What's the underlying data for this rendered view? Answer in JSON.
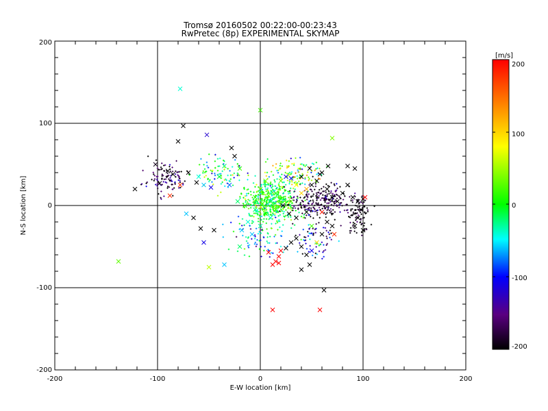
{
  "chart_data": {
    "type": "scatter",
    "title": "Tromsø 20160502 00:22:00-00:23:43",
    "subtitle": "RwPretec (8p) EXPERIMENTAL SKYMAP",
    "xlabel": "E-W location [km]",
    "ylabel": "N-S location [km]",
    "xlim": [
      -200,
      200
    ],
    "ylim": [
      -200,
      200
    ],
    "xticks": [
      "-200",
      "-100",
      "0",
      "100",
      "200"
    ],
    "yticks": [
      "-200",
      "-100",
      "0",
      "100",
      "200"
    ],
    "grid_at": [
      -100,
      0,
      100
    ],
    "colorbar": {
      "label": "[m/s]",
      "range": [
        -200,
        200
      ],
      "ticks": [
        "200",
        "100",
        "0",
        "-100",
        "-200"
      ],
      "colormap": [
        "#000000",
        "#5a0080",
        "#0000ff",
        "#00ffff",
        "#00ff00",
        "#ffff00",
        "#ff8000",
        "#ff0000"
      ]
    },
    "markers": {
      "large": "x",
      "small": "+"
    },
    "x_points": [
      {
        "x": -78,
        "y": 142,
        "v": -40
      },
      {
        "x": 0,
        "y": 116,
        "v": 20
      },
      {
        "x": 70,
        "y": 82,
        "v": 40
      },
      {
        "x": -122,
        "y": 20,
        "v": -200
      },
      {
        "x": -102,
        "y": 50,
        "v": -190
      },
      {
        "x": -90,
        "y": 42,
        "v": -200
      },
      {
        "x": -85,
        "y": 38,
        "v": -200
      },
      {
        "x": -80,
        "y": 78,
        "v": -200
      },
      {
        "x": -75,
        "y": 97,
        "v": -200
      },
      {
        "x": -98,
        "y": 27,
        "v": -200
      },
      {
        "x": -88,
        "y": 12,
        "v": 180
      },
      {
        "x": -78,
        "y": 25,
        "v": 180
      },
      {
        "x": -70,
        "y": 40,
        "v": -200
      },
      {
        "x": -60,
        "y": 35,
        "v": -40
      },
      {
        "x": -55,
        "y": 25,
        "v": -60
      },
      {
        "x": -48,
        "y": 22,
        "v": -110
      },
      {
        "x": -52,
        "y": 86,
        "v": -120
      },
      {
        "x": -28,
        "y": 70,
        "v": -200
      },
      {
        "x": -25,
        "y": 60,
        "v": -200
      },
      {
        "x": -138,
        "y": -68,
        "v": 30
      },
      {
        "x": -72,
        "y": -10,
        "v": -60
      },
      {
        "x": -55,
        "y": -45,
        "v": -110
      },
      {
        "x": -50,
        "y": -75,
        "v": 60
      },
      {
        "x": -35,
        "y": -72,
        "v": -60
      },
      {
        "x": -20,
        "y": -50,
        "v": -20
      },
      {
        "x": -18,
        "y": -30,
        "v": -60
      },
      {
        "x": -12,
        "y": -20,
        "v": -40
      },
      {
        "x": -30,
        "y": 25,
        "v": -80
      },
      {
        "x": -20,
        "y": 45,
        "v": 20
      },
      {
        "x": -35,
        "y": 48,
        "v": -20
      },
      {
        "x": -40,
        "y": 35,
        "v": -10
      },
      {
        "x": -5,
        "y": 10,
        "v": 0
      },
      {
        "x": 0,
        "y": 20,
        "v": 20
      },
      {
        "x": 5,
        "y": 30,
        "v": 40
      },
      {
        "x": 10,
        "y": 5,
        "v": -20
      },
      {
        "x": 15,
        "y": 15,
        "v": 20
      },
      {
        "x": 20,
        "y": 30,
        "v": 30
      },
      {
        "x": 25,
        "y": 35,
        "v": -110
      },
      {
        "x": 30,
        "y": 33,
        "v": -100
      },
      {
        "x": 35,
        "y": 25,
        "v": 80
      },
      {
        "x": 40,
        "y": 15,
        "v": 100
      },
      {
        "x": 45,
        "y": 20,
        "v": 120
      },
      {
        "x": 50,
        "y": 25,
        "v": -200
      },
      {
        "x": 55,
        "y": 30,
        "v": -200
      },
      {
        "x": 60,
        "y": 40,
        "v": -200
      },
      {
        "x": 65,
        "y": 20,
        "v": -200
      },
      {
        "x": 70,
        "y": 10,
        "v": -200
      },
      {
        "x": 75,
        "y": 5,
        "v": -200
      },
      {
        "x": 80,
        "y": 15,
        "v": -200
      },
      {
        "x": 85,
        "y": 25,
        "v": -200
      },
      {
        "x": 90,
        "y": 10,
        "v": -200
      },
      {
        "x": 95,
        "y": 5,
        "v": -200
      },
      {
        "x": 100,
        "y": 8,
        "v": -200
      },
      {
        "x": 98,
        "y": -5,
        "v": -200
      },
      {
        "x": 95,
        "y": -15,
        "v": -200
      },
      {
        "x": 92,
        "y": -25,
        "v": -200
      },
      {
        "x": 100,
        "y": -30,
        "v": -200
      },
      {
        "x": 102,
        "y": 10,
        "v": 200
      },
      {
        "x": 85,
        "y": 48,
        "v": -200
      },
      {
        "x": 92,
        "y": 45,
        "v": -200
      },
      {
        "x": 66,
        "y": 48,
        "v": -200
      },
      {
        "x": 58,
        "y": 38,
        "v": -200
      },
      {
        "x": 40,
        "y": 35,
        "v": -200
      },
      {
        "x": 48,
        "y": 45,
        "v": -200
      },
      {
        "x": 60,
        "y": -8,
        "v": 190
      },
      {
        "x": 65,
        "y": -20,
        "v": -200
      },
      {
        "x": 70,
        "y": -25,
        "v": -200
      },
      {
        "x": 72,
        "y": -35,
        "v": 180
      },
      {
        "x": 60,
        "y": -35,
        "v": -200
      },
      {
        "x": 55,
        "y": -45,
        "v": 100
      },
      {
        "x": 50,
        "y": -55,
        "v": -110
      },
      {
        "x": 45,
        "y": -60,
        "v": -200
      },
      {
        "x": 40,
        "y": -50,
        "v": -200
      },
      {
        "x": 35,
        "y": -40,
        "v": -200
      },
      {
        "x": 30,
        "y": -45,
        "v": -200
      },
      {
        "x": 25,
        "y": -52,
        "v": -200
      },
      {
        "x": 20,
        "y": -55,
        "v": 200
      },
      {
        "x": 18,
        "y": -62,
        "v": 200
      },
      {
        "x": 15,
        "y": -68,
        "v": 200
      },
      {
        "x": 12,
        "y": -72,
        "v": 200
      },
      {
        "x": 8,
        "y": -57,
        "v": 200
      },
      {
        "x": 18,
        "y": -70,
        "v": 200
      },
      {
        "x": 40,
        "y": -78,
        "v": -200
      },
      {
        "x": 48,
        "y": -72,
        "v": -200
      },
      {
        "x": 62,
        "y": -103,
        "v": -200
      },
      {
        "x": 12,
        "y": -127,
        "v": 200
      },
      {
        "x": 58,
        "y": -127,
        "v": 200
      },
      {
        "x": -5,
        "y": -5,
        "v": -20
      },
      {
        "x": 5,
        "y": -10,
        "v": 0
      },
      {
        "x": 10,
        "y": -15,
        "v": -40
      },
      {
        "x": 0,
        "y": -25,
        "v": -30
      },
      {
        "x": -8,
        "y": -35,
        "v": -60
      },
      {
        "x": -15,
        "y": 0,
        "v": 10
      },
      {
        "x": -22,
        "y": 5,
        "v": -20
      },
      {
        "x": 2,
        "y": 2,
        "v": 20
      },
      {
        "x": 8,
        "y": 12,
        "v": 30
      },
      {
        "x": 15,
        "y": -5,
        "v": 20
      },
      {
        "x": 22,
        "y": 0,
        "v": -200
      },
      {
        "x": 28,
        "y": -10,
        "v": -200
      },
      {
        "x": 30,
        "y": 5,
        "v": 30
      },
      {
        "x": 35,
        "y": -15,
        "v": -200
      },
      {
        "x": 45,
        "y": -8,
        "v": -200
      },
      {
        "x": 50,
        "y": -25,
        "v": 20
      },
      {
        "x": -62,
        "y": 28,
        "v": -200
      },
      {
        "x": -65,
        "y": -15,
        "v": -200
      },
      {
        "x": -58,
        "y": -28,
        "v": -200
      },
      {
        "x": -45,
        "y": -30,
        "v": -200
      }
    ]
  }
}
